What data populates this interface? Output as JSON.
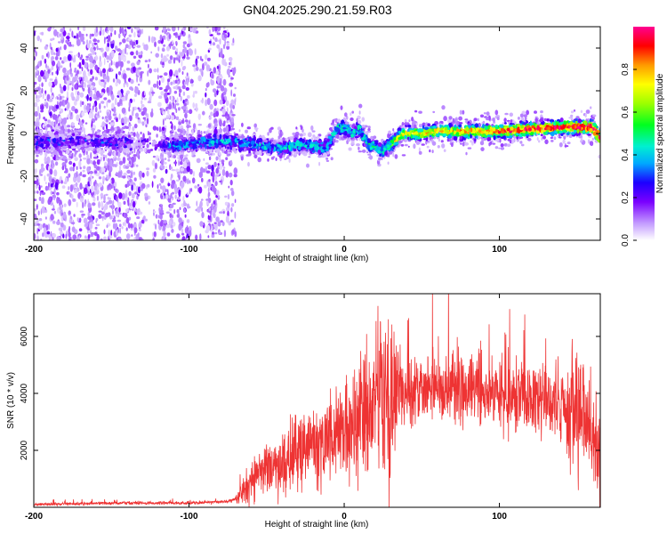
{
  "title": "GN04.2025.290.21.59.R03",
  "chart_data": [
    {
      "type": "heatmap",
      "xlabel": "Height of straight line (km)",
      "ylabel": "Frequency (Hz)",
      "xlim": [
        -200,
        165
      ],
      "ylim": [
        -50,
        50
      ],
      "xticks": [
        -200,
        -100,
        0,
        100
      ],
      "yticks": [
        -40,
        -20,
        0,
        20,
        40
      ],
      "colorbar": {
        "label": "Normalized spectral amplitude",
        "range": [
          0,
          1
        ],
        "ticks": [
          "0.0",
          "0.2",
          "0.4",
          "0.6",
          "0.8"
        ],
        "tick_values": [
          0.0,
          0.2,
          0.4,
          0.6,
          0.8
        ]
      },
      "noise_region_x": [
        -200,
        -70
      ],
      "ridge_line": {
        "x": [
          -200,
          -150,
          -140,
          -110,
          -90,
          -70,
          -50,
          -40,
          -30,
          -20,
          -12,
          -8,
          -5,
          0,
          5,
          10,
          15,
          20,
          25,
          28,
          32,
          36,
          40,
          50,
          60,
          80,
          100,
          120,
          140,
          150,
          160,
          165
        ],
        "y": [
          -4,
          -4,
          -4,
          -6,
          -4,
          -4,
          -6,
          -7,
          -5,
          -6,
          -7,
          -2,
          2,
          3,
          0,
          2,
          -5,
          -6,
          -8,
          -6,
          -4,
          -1,
          0,
          0,
          1,
          1,
          1,
          2,
          3,
          3,
          3,
          -2
        ]
      }
    },
    {
      "type": "line",
      "xlabel": "Height of straight line (km)",
      "ylabel": "SNR (10 * v/v)",
      "xlim": [
        -200,
        165
      ],
      "ylim": [
        0,
        7500
      ],
      "xticks": [
        -200,
        -100,
        0,
        100
      ],
      "yticks": [
        2000,
        4000,
        6000
      ],
      "color": "#ee3333",
      "trend": {
        "x": [
          -200,
          -150,
          -100,
          -75,
          -70,
          -60,
          -55,
          -40,
          -20,
          0,
          10,
          20,
          30,
          40,
          50,
          80,
          100,
          130,
          150,
          160,
          165
        ],
        "y": [
          100,
          150,
          150,
          200,
          300,
          900,
          1200,
          1500,
          2200,
          2700,
          3200,
          3700,
          3900,
          4000,
          4100,
          4100,
          4000,
          3800,
          3400,
          2400,
          1800
        ]
      }
    }
  ]
}
